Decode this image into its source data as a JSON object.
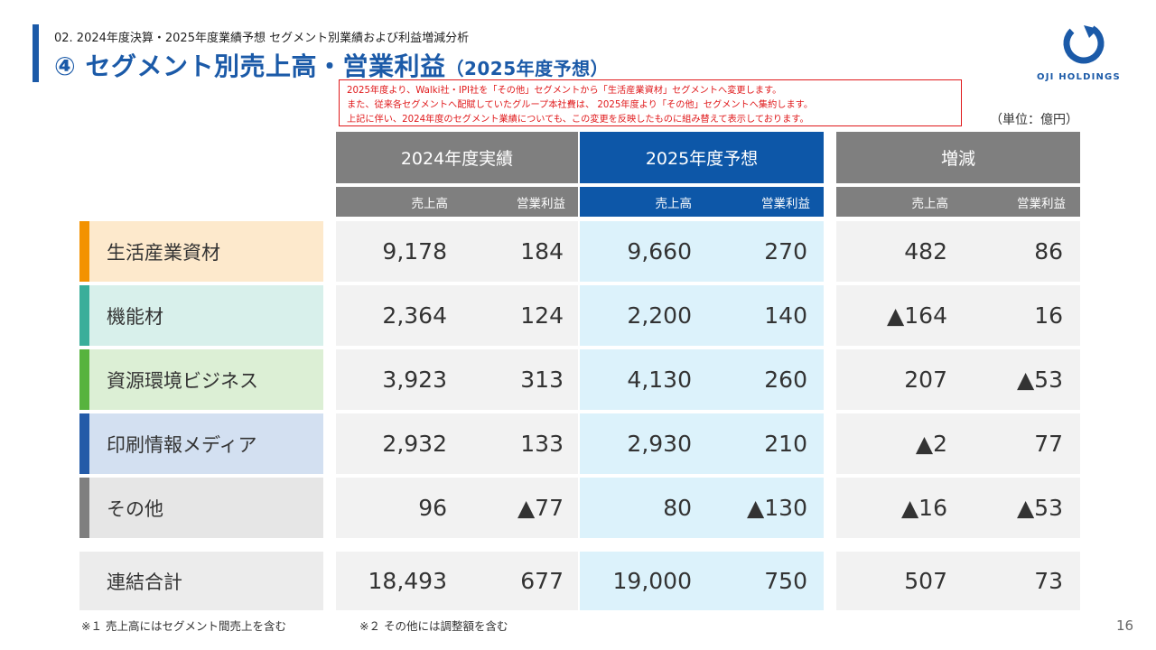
{
  "header": {
    "subtitle": "02. 2024年度決算・2025年度業績予想 セグメント別業績および利益増減分析",
    "title": "④ セグメント別売上高・営業利益",
    "title_sub": "（2025年度予想）",
    "logo_text": "OJI HOLDINGS",
    "logo_icon": "oji-ring-logo"
  },
  "notice": [
    "2025年度より、Walki社・IPI社を「その他」セグメントから「生活産業資材」セグメントへ変更します。",
    "また、従来各セグメントへ配賦していたグループ本社費は、 2025年度より「その他」セグメントへ集約します。",
    "上記に伴い、2024年度のセグメント業績についても、この変更を反映したものに組み替えて表示しております。"
  ],
  "unit": "（単位：億円）",
  "columns": {
    "actual_2024": "2024年度実績",
    "forecast_2025": "2025年度予想",
    "change": "増減",
    "sales": "売上高",
    "profit": "営業利益"
  },
  "rows": [
    {
      "name": "生活産業資材",
      "a_sales": "9,178",
      "a_profit": "184",
      "f_sales": "9,660",
      "f_profit": "270",
      "c_sales": "482",
      "c_profit": "86",
      "color": "#f39200",
      "bg": "#fde9cc"
    },
    {
      "name": "機能材",
      "a_sales": "2,364",
      "a_profit": "124",
      "f_sales": "2,200",
      "f_profit": "140",
      "c_sales": "▲164",
      "c_profit": "16",
      "color": "#3aae9a",
      "bg": "#d8f0eb"
    },
    {
      "name": "資源環境ビジネス",
      "a_sales": "3,923",
      "a_profit": "313",
      "f_sales": "4,130",
      "f_profit": "260",
      "c_sales": "207",
      "c_profit": "▲53",
      "color": "#57b33e",
      "bg": "#dcefd5"
    },
    {
      "name": "印刷情報メディア",
      "a_sales": "2,932",
      "a_profit": "133",
      "f_sales": "2,930",
      "f_profit": "210",
      "c_sales": "▲2",
      "c_profit": "77",
      "color": "#245ba8",
      "bg": "#d3e0f1"
    },
    {
      "name": "その他",
      "a_sales": "96",
      "a_profit": "▲77",
      "f_sales": "80",
      "f_profit": "▲130",
      "c_sales": "▲16",
      "c_profit": "▲53",
      "color": "#7f7f7f",
      "bg": "#e6e6e6"
    }
  ],
  "total": {
    "name": "連結合計",
    "a_sales": "18,493",
    "a_profit": "677",
    "f_sales": "19,000",
    "f_profit": "750",
    "c_sales": "507",
    "c_profit": "73",
    "bg": "#ececec"
  },
  "footnotes": [
    "※１ 売上高にはセグメント間売上を含む",
    "※２ その他には調整額を含む"
  ],
  "page_number": "16",
  "colors": {
    "accent": "#1b5aa8",
    "forecast_header": "#0d57a8",
    "forecast_cell": "#dcf2fb",
    "gray_header": "#7f7f7f",
    "cell": "#f2f2f2",
    "notice_red": "#e0191b"
  }
}
